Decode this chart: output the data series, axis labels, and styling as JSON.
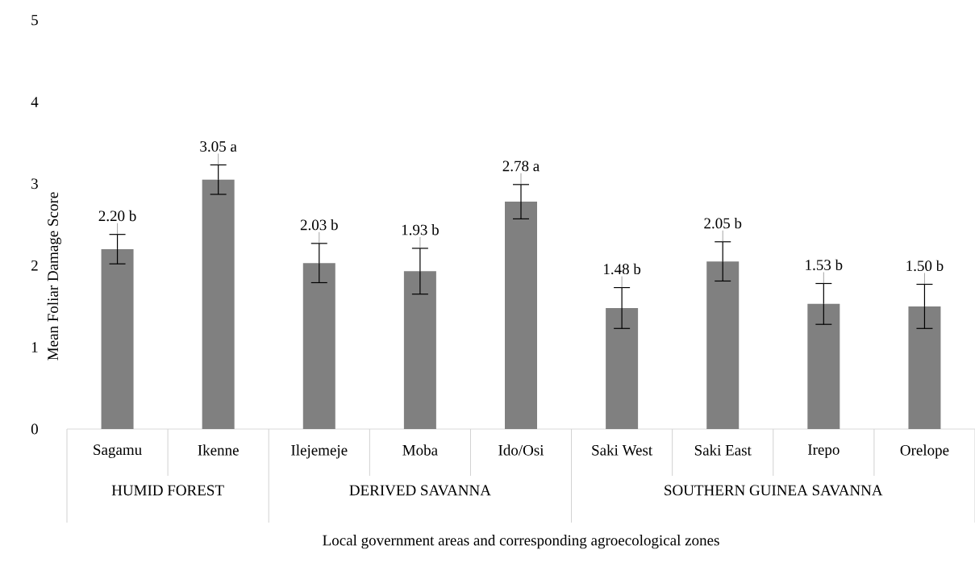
{
  "chart_data": {
    "type": "bar",
    "xlabel": "Local government areas and corresponding agroecological zones",
    "ylabel": "Mean Foliar Damage Score",
    "categories": [
      "Sagamu",
      "Ikenne",
      "Ilejemeje",
      "Moba",
      "Ido/Osi",
      "Saki West",
      "Saki East",
      "Irepo",
      "Orelope"
    ],
    "values": [
      2.2,
      3.05,
      2.03,
      1.93,
      2.78,
      1.48,
      2.05,
      1.53,
      1.5
    ],
    "errors": [
      0.18,
      0.18,
      0.24,
      0.28,
      0.21,
      0.25,
      0.24,
      0.25,
      0.27
    ],
    "value_labels": [
      "2.20 b",
      "3.05 a",
      "2.03 b",
      "1.93 b",
      "2.78 a",
      "1.48 b",
      "2.05 b",
      "1.53 b",
      "1.50 b"
    ],
    "color": "#808080",
    "annotations": [
      "HUMID FOREST",
      "DERIVED SAVANNA",
      "SOUTHERN GUINEA SAVANNA"
    ],
    "ylim": [
      0,
      5
    ],
    "yticks": [
      0,
      1,
      2,
      3,
      4,
      5
    ]
  }
}
